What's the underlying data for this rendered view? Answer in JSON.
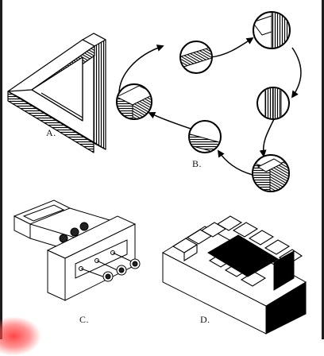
{
  "figures": [
    {
      "id": "A",
      "label": "A."
    },
    {
      "id": "B",
      "label": "B."
    },
    {
      "id": "C",
      "label": "C."
    },
    {
      "id": "D",
      "label": "D."
    }
  ]
}
